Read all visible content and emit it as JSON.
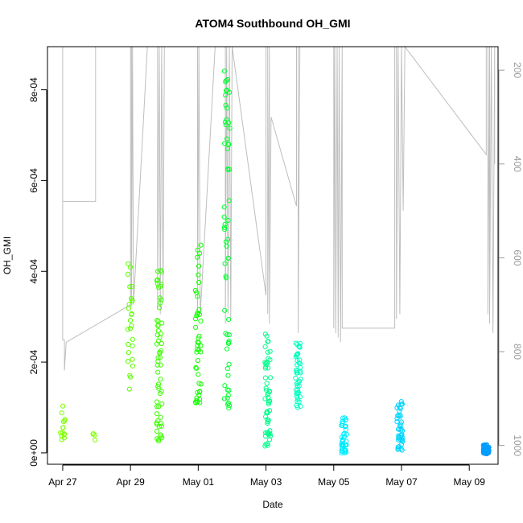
{
  "chart_data": {
    "type": "scatter",
    "title": "ATOM4 Southbound OH_GMI",
    "xlabel": "Date",
    "ylabel": "OH_GMI",
    "x_ticks": [
      "Apr 27",
      "Apr 29",
      "May 01",
      "May 03",
      "May 05",
      "May 07",
      "May 09"
    ],
    "x_tick_days": [
      0,
      2,
      4,
      6,
      8,
      10,
      12
    ],
    "xlim_days": [
      -0.45,
      12.85
    ],
    "y_ticks": [
      "0e+00",
      "2e-04",
      "4e-04",
      "6e-04",
      "8e-04"
    ],
    "y_tick_values": [
      0,
      0.0002,
      0.0004,
      0.0006,
      0.0008
    ],
    "ylim": [
      -2.5e-05,
      0.000895
    ],
    "y2_ticks": [
      "200",
      "400",
      "600",
      "800",
      "1000"
    ],
    "y2_tick_values": [
      200,
      400,
      600,
      800,
      1000
    ],
    "y2lim": [
      1040,
      150
    ],
    "colors": {
      "trace": "#bebebe",
      "axis": "#000000",
      "right_axis": "#9a9a9a"
    },
    "point_groups": [
      {
        "day": 0.0,
        "ymin": 2.8e-05,
        "ymax": 0.000108,
        "n": 14,
        "color": "#7cff00"
      },
      {
        "day": 0.97,
        "ymin": 2.8e-05,
        "ymax": 4.5e-05,
        "n": 4,
        "color": "#7cff00"
      },
      {
        "day": 2.0,
        "ymin": 0.00013,
        "ymax": 0.00042,
        "n": 26,
        "color": "#5dff00"
      },
      {
        "day": 2.85,
        "ymin": 2.5e-05,
        "ymax": 0.000415,
        "n": 60,
        "color": "#3dff00"
      },
      {
        "day": 4.0,
        "ymin": 0.00011,
        "ymax": 0.00046,
        "n": 45,
        "color": "#12ff00"
      },
      {
        "day": 4.85,
        "ymin": 9.5e-05,
        "ymax": 0.00086,
        "n": 60,
        "color": "#00ff2e"
      },
      {
        "day": 6.05,
        "ymin": 8e-06,
        "ymax": 0.000265,
        "n": 55,
        "color": "#00ff8c"
      },
      {
        "day": 6.95,
        "ymin": 0.0001,
        "ymax": 0.000245,
        "n": 45,
        "color": "#00ffbe"
      },
      {
        "day": 8.3,
        "ymin": 0.0,
        "ymax": 7.8e-05,
        "n": 40,
        "color": "#00ecff"
      },
      {
        "day": 9.95,
        "ymin": 5e-06,
        "ymax": 0.000115,
        "n": 45,
        "color": "#00d5ff"
      },
      {
        "day": 12.5,
        "ymin": -2e-06,
        "ymax": 1.8e-05,
        "n": 70,
        "color": "#009cff"
      }
    ],
    "pressure_trace": [
      [
        0.0,
        150
      ],
      [
        0.0,
        480
      ],
      [
        0.97,
        480
      ],
      [
        0.97,
        150
      ],
      [
        0.0,
        150
      ],
      [
        0.0,
        775
      ],
      [
        0.05,
        775
      ],
      [
        0.05,
        840
      ],
      [
        0.1,
        780
      ],
      [
        2.0,
        700
      ],
      [
        2.0,
        150
      ],
      [
        2.03,
        150
      ],
      [
        2.03,
        700
      ],
      [
        2.06,
        150
      ],
      [
        2.09,
        700
      ],
      [
        2.5,
        150
      ],
      [
        2.8,
        150
      ],
      [
        2.8,
        710
      ],
      [
        2.85,
        150
      ],
      [
        2.88,
        720
      ],
      [
        2.92,
        150
      ],
      [
        2.96,
        690
      ],
      [
        3.0,
        150
      ],
      [
        3.5,
        150
      ],
      [
        3.98,
        150
      ],
      [
        3.98,
        720
      ],
      [
        4.02,
        150
      ],
      [
        4.06,
        720
      ],
      [
        4.5,
        150
      ],
      [
        4.8,
        150
      ],
      [
        4.8,
        740
      ],
      [
        4.84,
        150
      ],
      [
        4.88,
        720
      ],
      [
        4.92,
        150
      ],
      [
        4.96,
        730
      ],
      [
        5.0,
        150
      ],
      [
        6.0,
        680
      ],
      [
        6.0,
        150
      ],
      [
        6.05,
        150
      ],
      [
        6.05,
        720
      ],
      [
        6.1,
        150
      ],
      [
        6.1,
        740
      ],
      [
        6.15,
        300
      ],
      [
        6.9,
        490
      ],
      [
        6.9,
        150
      ],
      [
        6.95,
        150
      ],
      [
        6.95,
        760
      ],
      [
        7.0,
        150
      ],
      [
        8.0,
        150
      ],
      [
        8.0,
        750
      ],
      [
        8.03,
        150
      ],
      [
        8.06,
        760
      ],
      [
        8.1,
        150
      ],
      [
        8.13,
        770
      ],
      [
        8.16,
        150
      ],
      [
        8.2,
        780
      ],
      [
        8.25,
        150
      ],
      [
        8.25,
        750
      ],
      [
        9.8,
        750
      ],
      [
        9.8,
        150
      ],
      [
        9.85,
        150
      ],
      [
        9.85,
        730
      ],
      [
        9.9,
        150
      ],
      [
        9.95,
        720
      ],
      [
        10.0,
        150
      ],
      [
        10.05,
        500
      ],
      [
        10.1,
        150
      ],
      [
        12.5,
        380
      ],
      [
        12.5,
        150
      ],
      [
        12.55,
        150
      ],
      [
        12.55,
        720
      ],
      [
        12.6,
        150
      ],
      [
        12.6,
        740
      ],
      [
        12.65,
        150
      ],
      [
        12.7,
        760
      ],
      [
        12.75,
        150
      ],
      [
        12.75,
        400
      ]
    ]
  }
}
